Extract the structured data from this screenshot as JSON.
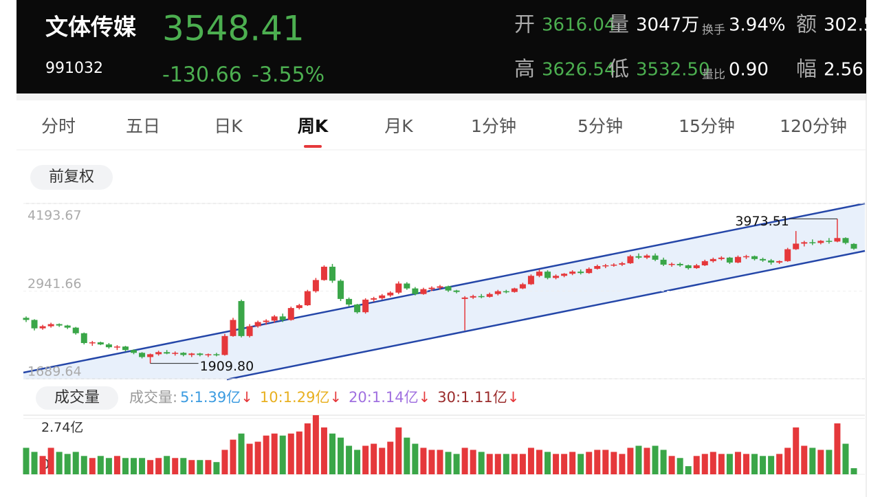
{
  "header": {
    "name": "文体传媒",
    "price": 3548.41,
    "code": "991032",
    "change": -130.66,
    "change_pct": "-3.55%",
    "fields": [
      {
        "label": "开",
        "value": "3616.04"
      },
      {
        "label": "量",
        "value": "3047万"
      },
      {
        "label": "换手",
        "value": "3.94%"
      },
      {
        "label": "额",
        "value": "302.5"
      },
      {
        "label": "高",
        "value": "3626.54"
      },
      {
        "label": "低",
        "value": "3532.50"
      },
      {
        "label": "量比",
        "value": "0.90"
      },
      {
        "label": "幅",
        "value": "2.56"
      }
    ]
  },
  "tabs": {
    "items": [
      "分时",
      "五日",
      "日K",
      "周K",
      "月K",
      "1分钟",
      "5分钟",
      "15分钟",
      "120分钟"
    ],
    "active": 3
  },
  "adjust_button": "前复权",
  "chart_data": [
    {
      "type": "candlestick",
      "ylim": [
        1689.64,
        4193.67
      ],
      "yticks": [
        4193.67,
        2941.66,
        1689.64
      ],
      "up_color": "#e5383b",
      "down_color": "#3aa648",
      "annotations": {
        "max": 3973.51,
        "min": 1909.8,
        "min_label": "1909.80"
      },
      "open": [
        2560,
        2530,
        2410,
        2440,
        2470,
        2450,
        2420,
        2340,
        2200,
        2210,
        2180,
        2140,
        2150,
        2100,
        2060,
        2000,
        2040,
        2070,
        2050,
        2060,
        2030,
        2050,
        2030,
        2040,
        2030,
        2300,
        2800,
        2300,
        2440,
        2500,
        2520,
        2580,
        2530,
        2700,
        2740,
        2940,
        3100,
        3290,
        3090,
        2830,
        2750,
        2640,
        2820,
        2840,
        2880,
        2920,
        3050,
        2980,
        2900,
        2970,
        2990,
        3010,
        2950,
        2830,
        2850,
        2870,
        2860,
        2900,
        2940,
        2930,
        2980,
        3040,
        3160,
        3220,
        3130,
        3160,
        3190,
        3220,
        3200,
        3260,
        3300,
        3310,
        3320,
        3340,
        3440,
        3420,
        3450,
        3390,
        3320,
        3330,
        3310,
        3270,
        3310,
        3370,
        3400,
        3420,
        3350,
        3430,
        3440,
        3400,
        3380,
        3350,
        3370,
        3540,
        3620,
        3640,
        3630,
        3660,
        3650,
        3700,
        3616.04
      ],
      "high": [
        2580,
        2540,
        2460,
        2490,
        2480,
        2460,
        2430,
        2350,
        2230,
        2220,
        2200,
        2170,
        2160,
        2110,
        2070,
        2050,
        2090,
        2100,
        2080,
        2070,
        2060,
        2060,
        2050,
        2060,
        2330,
        2560,
        2820,
        2470,
        2520,
        2540,
        2600,
        2620,
        2720,
        2760,
        2960,
        3130,
        3310,
        3330,
        3110,
        2850,
        2760,
        2840,
        2860,
        2900,
        2940,
        3080,
        3070,
        3000,
        2990,
        3010,
        3030,
        3020,
        2960,
        2870,
        2890,
        2900,
        2920,
        2960,
        2960,
        2990,
        3060,
        3180,
        3250,
        3240,
        3180,
        3200,
        3240,
        3250,
        3280,
        3320,
        3330,
        3340,
        3360,
        3460,
        3480,
        3470,
        3480,
        3420,
        3350,
        3350,
        3320,
        3330,
        3390,
        3420,
        3440,
        3430,
        3450,
        3460,
        3450,
        3420,
        3400,
        3380,
        3560,
        3800,
        3660,
        3680,
        3670,
        3700,
        3973.51,
        3710,
        3626.54
      ],
      "low": [
        2500,
        2380,
        2390,
        2420,
        2430,
        2400,
        2320,
        2180,
        2160,
        2170,
        2120,
        2100,
        2080,
        2040,
        1980,
        1909.8,
        2020,
        2040,
        2020,
        2010,
        2000,
        2010,
        2000,
        2010,
        2020,
        2290,
        2280,
        2280,
        2420,
        2460,
        2490,
        2500,
        2520,
        2680,
        2730,
        2920,
        3090,
        3060,
        2800,
        2720,
        2620,
        2620,
        2790,
        2820,
        2860,
        2900,
        2960,
        2880,
        2890,
        2940,
        2960,
        2930,
        2910,
        2380,
        2830,
        2840,
        2850,
        2880,
        2910,
        2920,
        2970,
        3030,
        3140,
        3110,
        3110,
        3140,
        3170,
        3180,
        3190,
        3250,
        3270,
        3290,
        3300,
        3330,
        3400,
        3400,
        3370,
        3300,
        3290,
        3290,
        3250,
        3260,
        3300,
        3350,
        3380,
        3330,
        3340,
        3400,
        3380,
        3360,
        3320,
        3330,
        3360,
        3530,
        3580,
        3600,
        3610,
        3620,
        3640,
        3610,
        3532.5
      ],
      "close": [
        2530,
        2410,
        2440,
        2470,
        2450,
        2420,
        2340,
        2200,
        2210,
        2180,
        2140,
        2150,
        2100,
        2060,
        2000,
        2040,
        2070,
        2050,
        2060,
        2030,
        2050,
        2030,
        2040,
        2030,
        2300,
        2530,
        2300,
        2440,
        2500,
        2520,
        2580,
        2530,
        2700,
        2740,
        2940,
        3100,
        3290,
        3090,
        2830,
        2750,
        2640,
        2820,
        2840,
        2880,
        2920,
        3050,
        2980,
        2900,
        2970,
        2990,
        3010,
        2950,
        2930,
        2850,
        2870,
        2860,
        2900,
        2940,
        2930,
        2980,
        3040,
        3160,
        3220,
        3130,
        3160,
        3190,
        3220,
        3200,
        3260,
        3300,
        3310,
        3320,
        3340,
        3440,
        3420,
        3450,
        3390,
        3320,
        3330,
        3310,
        3270,
        3310,
        3370,
        3400,
        3420,
        3350,
        3430,
        3440,
        3400,
        3380,
        3350,
        3370,
        3540,
        3620,
        3640,
        3630,
        3660,
        3650,
        3700,
        3630,
        3548.41
      ]
    },
    {
      "type": "volume",
      "title": "成交量",
      "legend_prefix": "成交量:",
      "legend": [
        {
          "text": "5:1.39亿",
          "color": "#3b9be0"
        },
        {
          "text": "10:1.29亿",
          "color": "#e8b020"
        },
        {
          "text": "20:1.14亿",
          "color": "#a070e0"
        },
        {
          "text": "30:1.11亿",
          "color": "#9a2b2b"
        }
      ],
      "ylim": [
        0,
        2.9
      ],
      "yticks": [
        {
          "value": 2.74,
          "label": "2.74亿"
        },
        {
          "value": 0,
          "label": "0"
        }
      ],
      "values": [
        1.3,
        1.1,
        0.9,
        1.3,
        1.1,
        1.0,
        1.1,
        0.9,
        0.8,
        0.9,
        0.8,
        0.9,
        0.8,
        0.8,
        0.8,
        0.7,
        0.8,
        0.9,
        0.8,
        0.8,
        0.7,
        0.7,
        0.7,
        0.6,
        1.2,
        1.7,
        2.0,
        1.5,
        1.6,
        1.9,
        2.0,
        1.9,
        2.0,
        2.1,
        2.5,
        2.9,
        2.3,
        2.0,
        1.8,
        1.4,
        1.2,
        1.4,
        1.5,
        1.3,
        1.6,
        2.3,
        1.8,
        1.5,
        1.3,
        1.2,
        1.2,
        1.1,
        1.0,
        1.3,
        1.2,
        1.1,
        1.0,
        1.0,
        1.0,
        1.0,
        1.0,
        1.3,
        1.2,
        1.1,
        1.0,
        1.0,
        1.1,
        1.0,
        1.1,
        1.2,
        1.2,
        1.1,
        1.0,
        1.3,
        1.4,
        1.3,
        1.4,
        1.2,
        0.9,
        0.8,
        0.4,
        0.9,
        1.0,
        1.1,
        1.0,
        1.0,
        1.1,
        1.0,
        1.0,
        0.9,
        0.9,
        1.0,
        1.3,
        2.3,
        1.4,
        1.3,
        1.2,
        1.2,
        2.5,
        1.5,
        0.3
      ]
    }
  ]
}
